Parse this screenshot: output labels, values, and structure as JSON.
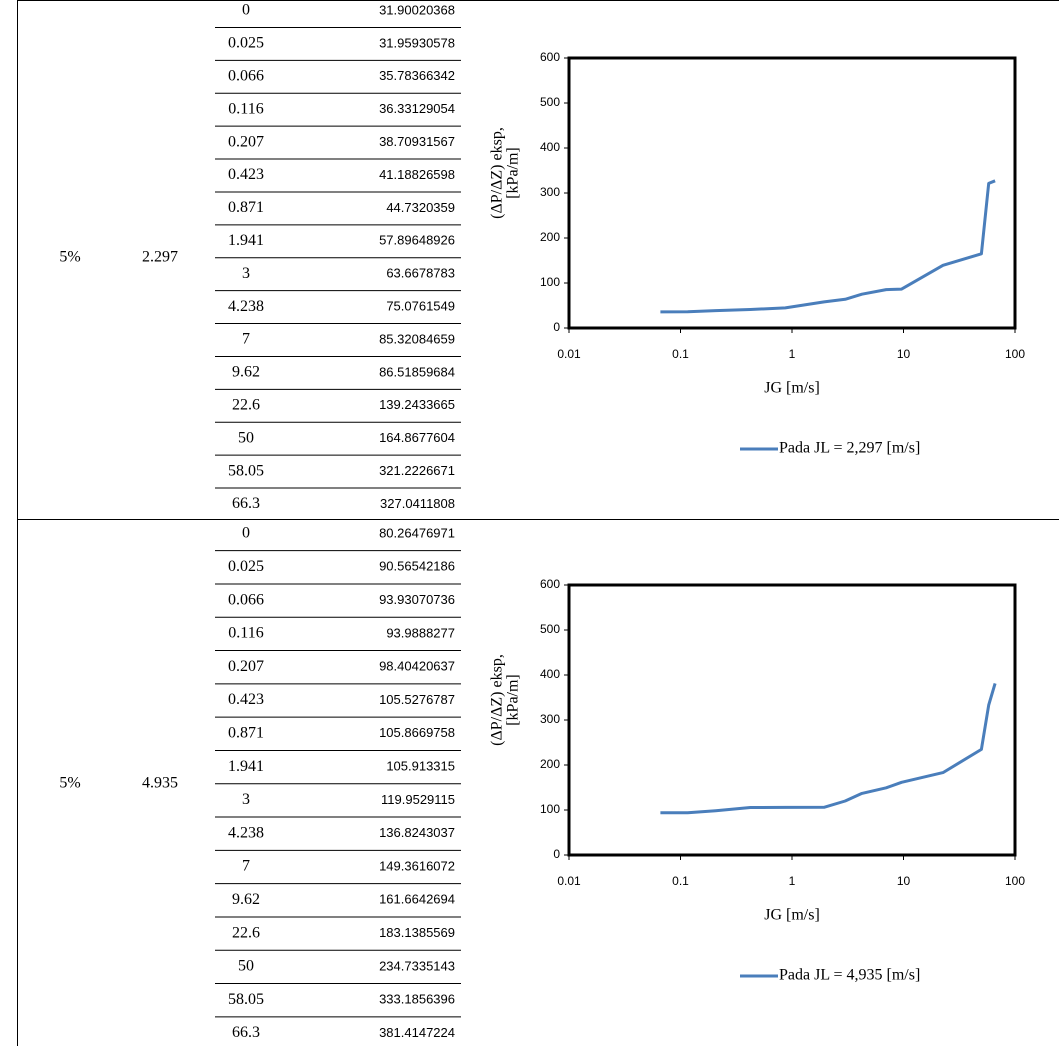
{
  "table": {
    "blocks": [
      {
        "percent": "5%",
        "jl": "2.297",
        "rows": [
          [
            "0",
            "31.90020368"
          ],
          [
            "0.025",
            "31.95930578"
          ],
          [
            "0.066",
            "35.78366342"
          ],
          [
            "0.116",
            "36.33129054"
          ],
          [
            "0.207",
            "38.70931567"
          ],
          [
            "0.423",
            "41.18826598"
          ],
          [
            "0.871",
            "44.7320359"
          ],
          [
            "1.941",
            "57.89648926"
          ],
          [
            "3",
            "63.6678783"
          ],
          [
            "4.238",
            "75.0761549"
          ],
          [
            "7",
            "85.32084659"
          ],
          [
            "9.62",
            "86.51859684"
          ],
          [
            "22.6",
            "139.2433665"
          ],
          [
            "50",
            "164.8677604"
          ],
          [
            "58.05",
            "321.2226671"
          ],
          [
            "66.3",
            "327.0411808"
          ]
        ]
      },
      {
        "percent": "5%",
        "jl": "4.935",
        "rows": [
          [
            "0",
            "80.26476971"
          ],
          [
            "0.025",
            "90.56542186"
          ],
          [
            "0.066",
            "93.93070736"
          ],
          [
            "0.116",
            "93.9888277"
          ],
          [
            "0.207",
            "98.40420637"
          ],
          [
            "0.423",
            "105.5276787"
          ],
          [
            "0.871",
            "105.8669758"
          ],
          [
            "1.941",
            "105.913315"
          ],
          [
            "3",
            "119.9529115"
          ],
          [
            "4.238",
            "136.8243037"
          ],
          [
            "7",
            "149.3616072"
          ],
          [
            "9.62",
            "161.6642694"
          ],
          [
            "22.6",
            "183.1385569"
          ],
          [
            "50",
            "234.7335143"
          ],
          [
            "58.05",
            "333.1856396"
          ],
          [
            "66.3",
            "381.4147224"
          ]
        ]
      }
    ]
  },
  "chart_data": [
    {
      "type": "line",
      "xlabel": "JG [m/s]",
      "ylabel": [
        "(ΔP/ΔZ) eksp,",
        "[kPa/m]"
      ],
      "log_x": true,
      "x": [
        0.066,
        0.116,
        0.207,
        0.423,
        0.871,
        1.941,
        3,
        4.238,
        7,
        9.62,
        22.6,
        50,
        58.05,
        66.3
      ],
      "series": [
        {
          "name": "Pada JL = 2,297 [m/s]",
          "color": "#4a7ebb",
          "values": [
            35.78366342,
            36.33129054,
            38.70931567,
            41.18826598,
            44.7320359,
            57.89648926,
            63.6678783,
            75.0761549,
            85.32084659,
            86.51859684,
            139.2433665,
            164.8677604,
            321.2226671,
            327.0411808
          ]
        }
      ],
      "xlim": [
        0.01,
        100
      ],
      "xticks": [
        0.01,
        0.1,
        1,
        10,
        100
      ],
      "ylim": [
        0,
        600
      ],
      "yticks": [
        0,
        100,
        200,
        300,
        400,
        500,
        600
      ]
    },
    {
      "type": "line",
      "xlabel": "JG [m/s]",
      "ylabel": [
        "(ΔP/ΔZ) eksp,",
        "[kPa/m]"
      ],
      "log_x": true,
      "x": [
        0.066,
        0.116,
        0.207,
        0.423,
        0.871,
        1.941,
        3,
        4.238,
        7,
        9.62,
        22.6,
        50,
        58.05,
        66.3
      ],
      "series": [
        {
          "name": "Pada JL = 4,935 [m/s]",
          "color": "#4a7ebb",
          "values": [
            93.93070736,
            93.9888277,
            98.40420637,
            105.5276787,
            105.8669758,
            105.913315,
            119.9529115,
            136.8243037,
            149.3616072,
            161.6642694,
            183.1385569,
            234.7335143,
            333.1856396,
            381.4147224
          ]
        }
      ],
      "xlim": [
        0.01,
        100
      ],
      "xticks": [
        0.01,
        0.1,
        1,
        10,
        100
      ],
      "ylim": [
        0,
        600
      ],
      "yticks": [
        0,
        100,
        200,
        300,
        400,
        500,
        600
      ]
    }
  ]
}
